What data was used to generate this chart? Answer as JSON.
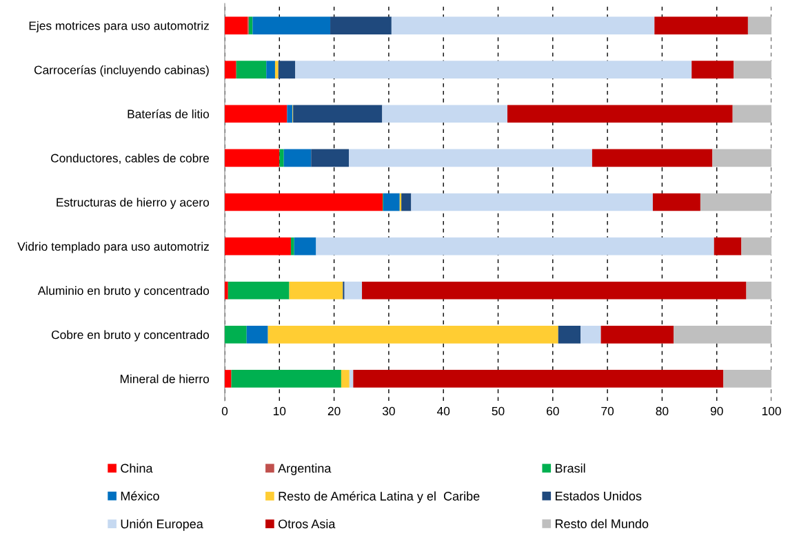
{
  "chart_data": {
    "type": "bar",
    "orientation": "horizontal",
    "stacked": true,
    "categories": [
      "Ejes motrices para uso automotriz",
      "Carrocerías (incluyendo cabinas)",
      "Baterías de litio",
      "Conductores, cables de cobre",
      "Estructuras de hierro y acero",
      "Vidrio templado para uso automotriz",
      "Aluminio en bruto y concentrado",
      "Cobre en bruto y concentrado",
      "Mineral de hierro"
    ],
    "series": [
      {
        "name": "China",
        "color": "#ff0000",
        "values": [
          4.2,
          2.1,
          11.4,
          10.0,
          28.9,
          12.1,
          0.6,
          0,
          1.2
        ]
      },
      {
        "name": "Argentina",
        "color": "#c0504d",
        "values": [
          0.2,
          0,
          0,
          0,
          0,
          0,
          0,
          0,
          0
        ]
      },
      {
        "name": "Brasil",
        "color": "#00b050",
        "values": [
          0.7,
          5.5,
          0,
          0.8,
          0.1,
          0.6,
          11.2,
          4.0,
          20.1
        ]
      },
      {
        "name": "México",
        "color": "#0070c0",
        "values": [
          14.2,
          1.6,
          1.0,
          5.0,
          3.0,
          4.0,
          0,
          3.9,
          0
        ]
      },
      {
        "name": "Resto de América Latina y el  Caribe",
        "color": "#ffcd33",
        "values": [
          0,
          0.6,
          0.1,
          0,
          0.3,
          0,
          9.8,
          53.1,
          1.5
        ]
      },
      {
        "name": "Estados Unidos",
        "color": "#1f497d",
        "values": [
          11.2,
          3.1,
          16.3,
          6.9,
          1.8,
          0,
          0.3,
          4.1,
          0
        ]
      },
      {
        "name": "Unión Europea",
        "color": "#c6d9f1",
        "values": [
          48.1,
          72.5,
          22.9,
          44.5,
          44.2,
          72.8,
          3.2,
          3.7,
          0.7
        ]
      },
      {
        "name": "Otros Asia",
        "color": "#c00000",
        "values": [
          17.1,
          7.7,
          41.2,
          22.0,
          8.7,
          5.0,
          70.3,
          13.3,
          67.7
        ]
      },
      {
        "name": "Resto del Mundo",
        "color": "#bfbfbf",
        "values": [
          4.3,
          6.9,
          7.1,
          10.8,
          13.0,
          5.5,
          4.6,
          17.9,
          8.8
        ]
      }
    ],
    "xlim": [
      0,
      100
    ],
    "xticks": [
      0,
      10,
      20,
      30,
      40,
      50,
      60,
      70,
      80,
      90,
      100
    ],
    "grid": "x",
    "legend": "bottom"
  }
}
